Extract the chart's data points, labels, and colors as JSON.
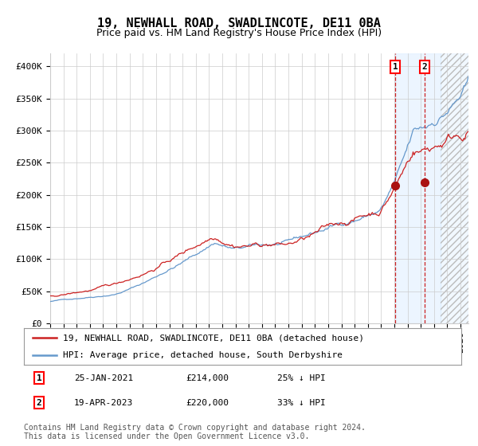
{
  "title": "19, NEWHALL ROAD, SWADLINCOTE, DE11 0BA",
  "subtitle": "Price paid vs. HM Land Registry's House Price Index (HPI)",
  "ylim": [
    0,
    420000
  ],
  "yticks": [
    0,
    50000,
    100000,
    150000,
    200000,
    250000,
    300000,
    350000,
    400000
  ],
  "ytick_labels": [
    "£0",
    "£50K",
    "£100K",
    "£150K",
    "£200K",
    "£250K",
    "£300K",
    "£350K",
    "£400K"
  ],
  "xlim_start": 1995,
  "xlim_end": 2026.6,
  "hpi_color": "#6699cc",
  "price_color": "#cc2222",
  "marker_color": "#aa1111",
  "shade_color": "#ddeeff",
  "grid_color": "#cccccc",
  "background_color": "#ffffff",
  "legend_label_red": "19, NEWHALL ROAD, SWADLINCOTE, DE11 0BA (detached house)",
  "legend_label_blue": "HPI: Average price, detached house, South Derbyshire",
  "point1_date": "25-JAN-2021",
  "point1_price": 214000,
  "point1_hpi_pct": "25% ↓ HPI",
  "point1_x": 2021.07,
  "point2_date": "19-APR-2023",
  "point2_price": 220000,
  "point2_hpi_pct": "33% ↓ HPI",
  "point2_x": 2023.29,
  "hatch_start": 2024.5,
  "title_fontsize": 11,
  "subtitle_fontsize": 9,
  "tick_fontsize": 8,
  "legend_fontsize": 8,
  "footnote_fontsize": 7,
  "footnote": "Contains HM Land Registry data © Crown copyright and database right 2024.\nThis data is licensed under the Open Government Licence v3.0."
}
